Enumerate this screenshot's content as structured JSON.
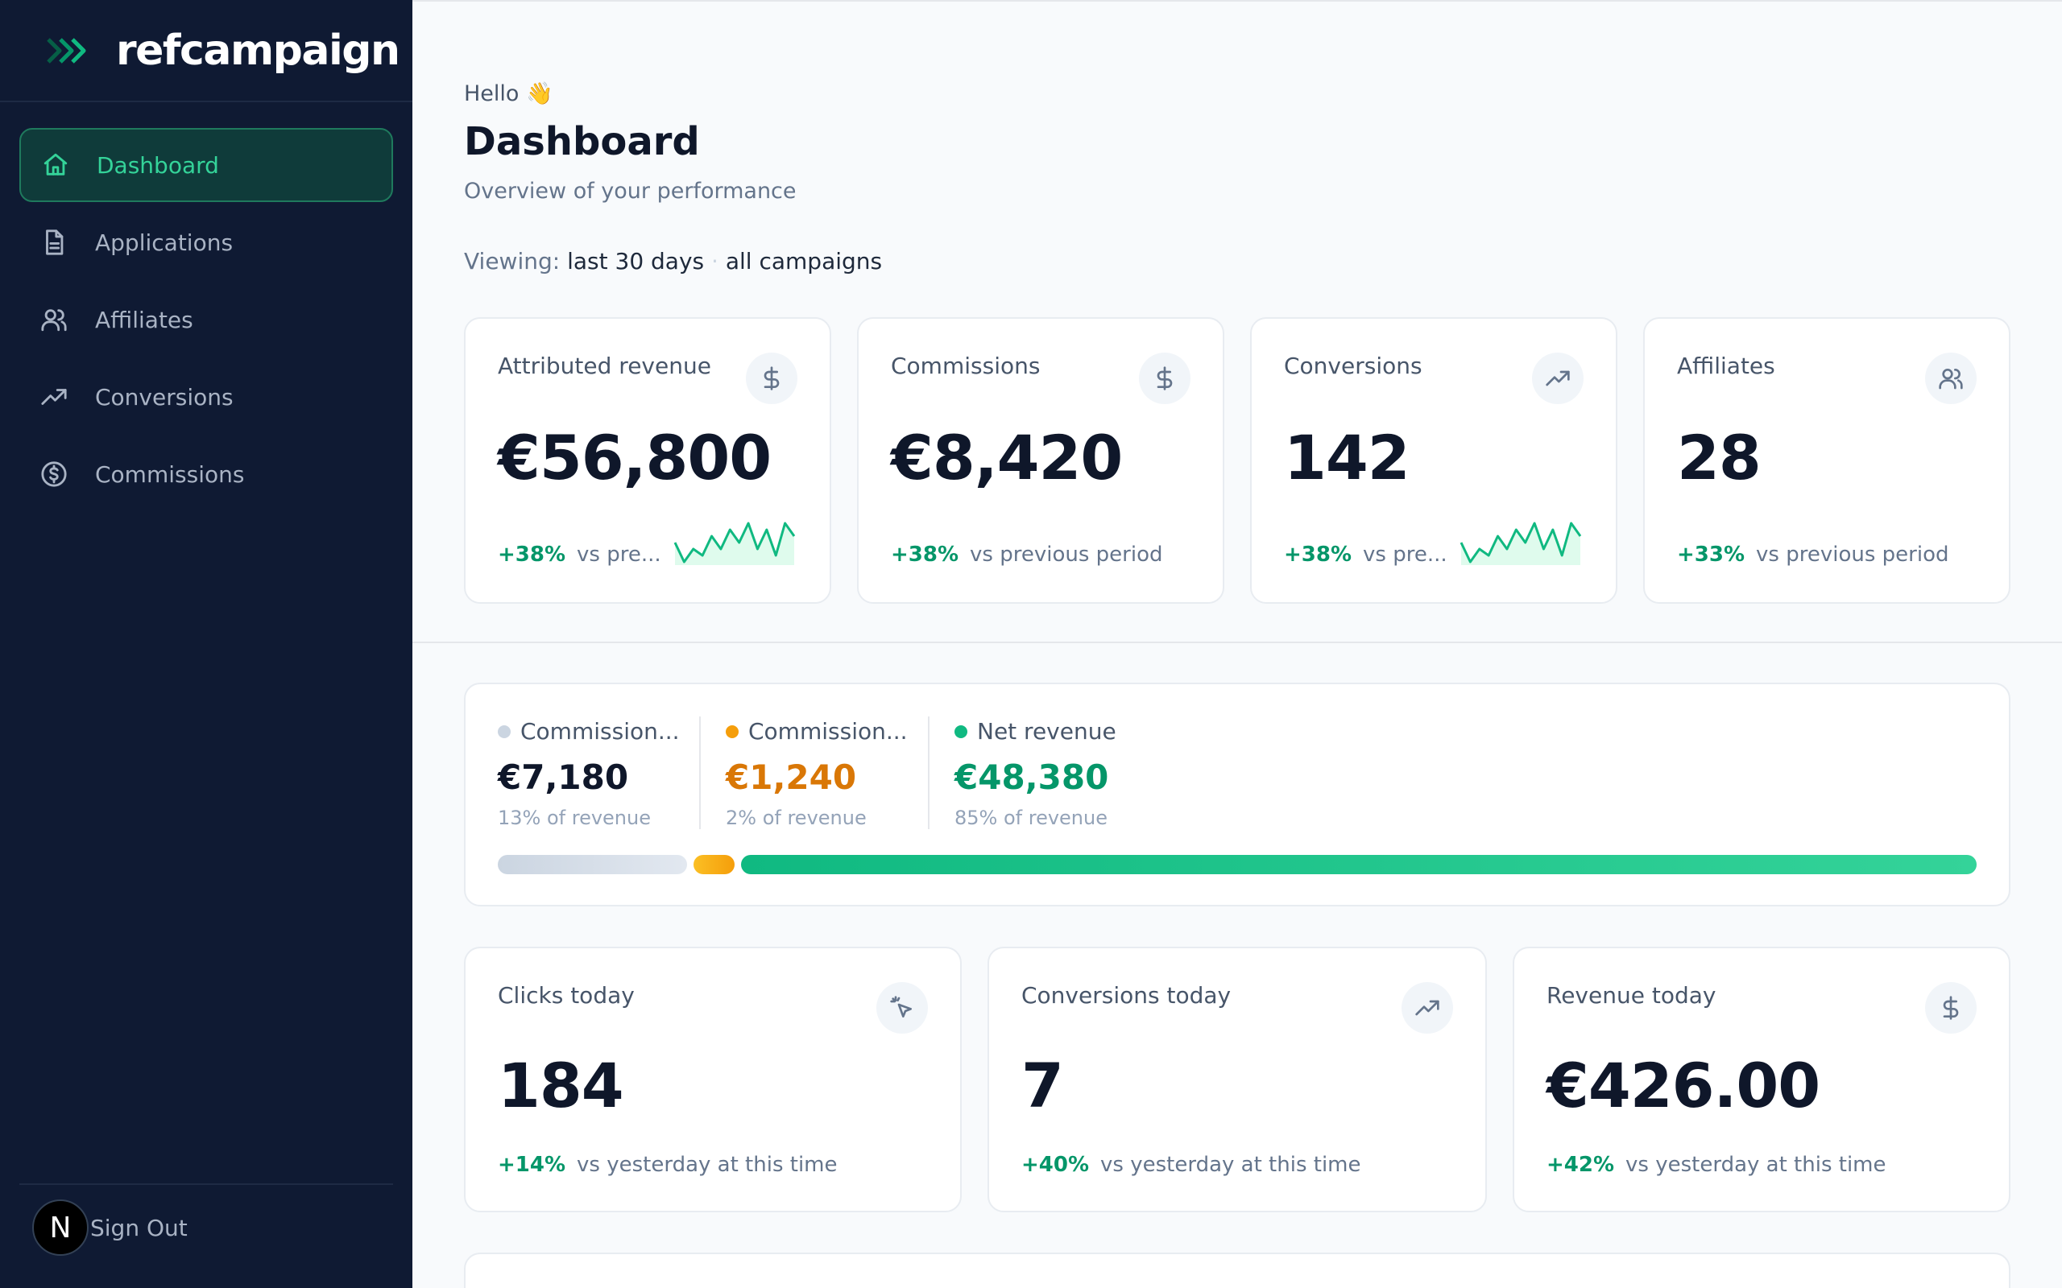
{
  "brand": {
    "name": "refcampaign",
    "accent": "#10b981"
  },
  "sidebar": {
    "items": [
      {
        "label": "Dashboard",
        "icon": "home-icon",
        "active": true
      },
      {
        "label": "Applications",
        "icon": "document-icon"
      },
      {
        "label": "Affiliates",
        "icon": "users-icon"
      },
      {
        "label": "Conversions",
        "icon": "trending-up-icon"
      },
      {
        "label": "Commissions",
        "icon": "dollar-circle-icon"
      }
    ],
    "signout": {
      "label": "Sign Out",
      "avatar_letter": "N"
    }
  },
  "header": {
    "hello": "Hello 👋",
    "title": "Dashboard",
    "subtitle": "Overview of your performance",
    "viewing_prefix": "Viewing:",
    "period": "last 30 days",
    "scope": "all campaigns"
  },
  "stats": [
    {
      "label": "Attributed revenue",
      "value": "€56,800",
      "delta": "+38%",
      "compare": "vs pre...",
      "icon": "dollar-icon",
      "sparkline": [
        6,
        3,
        5,
        4,
        7,
        5,
        8,
        6,
        9,
        5,
        8,
        4,
        9,
        7
      ]
    },
    {
      "label": "Commissions",
      "value": "€8,420",
      "delta": "+38%",
      "compare": "vs previous period",
      "icon": "dollar-icon"
    },
    {
      "label": "Conversions",
      "value": "142",
      "delta": "+38%",
      "compare": "vs pre...",
      "icon": "trending-up-icon",
      "sparkline": [
        6,
        3,
        5,
        4,
        7,
        5,
        8,
        6,
        9,
        5,
        8,
        4,
        9,
        7
      ]
    },
    {
      "label": "Affiliates",
      "value": "28",
      "delta": "+33%",
      "compare": "vs previous period",
      "icon": "users-icon"
    }
  ],
  "breakdown": {
    "items": [
      {
        "label": "Commission...",
        "value": "€7,180",
        "share": "13% of revenue",
        "color": "#cbd5e1",
        "value_color": "#0f172a",
        "fraction": 0.13
      },
      {
        "label": "Commission...",
        "value": "€1,240",
        "share": "2% of revenue",
        "color": "#f59e0b",
        "value_color": "#d97706",
        "fraction": 0.02
      },
      {
        "label": "Net revenue",
        "value": "€48,380",
        "share": "85% of revenue",
        "color": "#10b981",
        "value_color": "#059669",
        "fraction": 0.85
      }
    ]
  },
  "today": [
    {
      "label": "Clicks today",
      "value": "184",
      "delta": "+14%",
      "compare": "vs yesterday at this time",
      "icon": "cursor-click-icon"
    },
    {
      "label": "Conversions today",
      "value": "7",
      "delta": "+40%",
      "compare": "vs yesterday at this time",
      "icon": "trending-up-icon"
    },
    {
      "label": "Revenue today",
      "value": "€426.00",
      "delta": "+42%",
      "compare": "vs yesterday at this time",
      "icon": "dollar-icon"
    }
  ]
}
